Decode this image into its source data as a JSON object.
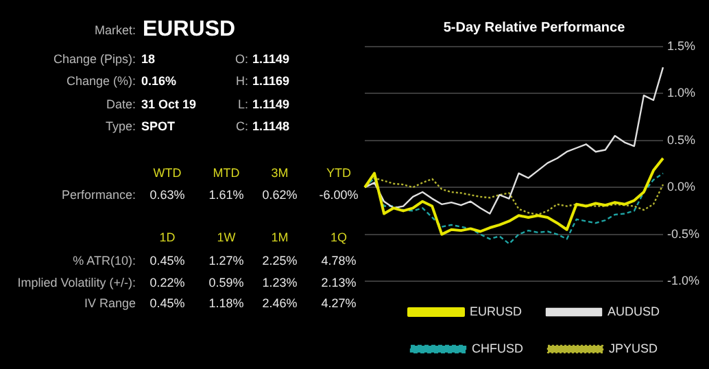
{
  "chart_data": [
    {
      "type": "other",
      "annotations": [
        "Market:",
        "EURUSD",
        "Change (Pips):",
        "18",
        "O:",
        "1.1149",
        "Change (%):",
        "0.16%",
        "H:",
        "1.1169",
        "Date:",
        "31 Oct 19",
        "L:",
        "1.1149",
        "Type:",
        "SPOT",
        "C:",
        "1.1148",
        "WTD",
        "MTD",
        "3M",
        "YTD",
        "Performance:",
        "0.63%",
        "1.61%",
        "0.62%",
        "-6.00%",
        "1D",
        "1W",
        "1M",
        "1Q",
        "% ATR(10):",
        "0.45%",
        "1.27%",
        "2.25%",
        "4.78%",
        "Implied Volatility (+/-):",
        "0.22%",
        "0.59%",
        "1.23%",
        "2.13%",
        "IV Range",
        "0.45%",
        "1.18%",
        "2.46%",
        "4.27%"
      ]
    },
    {
      "type": "line",
      "title": "5-Day Relative Performance",
      "categories": [
        null,
        null,
        null,
        null,
        null,
        null,
        null,
        null,
        null,
        null,
        null,
        null,
        null,
        null,
        null,
        null,
        null,
        null,
        null,
        null,
        null,
        null,
        null,
        null,
        null,
        null,
        null,
        null,
        null,
        null,
        null,
        null
      ],
      "series": [
        {
          "name": "EURUSD",
          "color": "#e6e600",
          "line_style": "solid",
          "values": [
            0.0,
            0.15,
            -0.28,
            -0.22,
            -0.25,
            -0.22,
            -0.15,
            -0.2,
            -0.5,
            -0.45,
            -0.46,
            -0.44,
            -0.47,
            -0.43,
            -0.4,
            -0.36,
            -0.3,
            -0.32,
            -0.3,
            -0.32,
            -0.38,
            -0.45,
            -0.18,
            -0.2,
            -0.17,
            -0.19,
            -0.16,
            -0.18,
            -0.14,
            -0.05,
            0.18,
            0.31
          ]
        },
        {
          "name": "AUDUSD",
          "color": "#e0e0e0",
          "line_style": "solid",
          "values": [
            0.0,
            0.05,
            -0.15,
            -0.22,
            -0.2,
            -0.1,
            -0.05,
            -0.12,
            -0.18,
            -0.16,
            -0.19,
            -0.15,
            -0.22,
            -0.28,
            -0.08,
            -0.12,
            0.15,
            0.1,
            0.18,
            0.26,
            0.31,
            0.38,
            0.42,
            0.46,
            0.38,
            0.4,
            0.55,
            0.48,
            0.44,
            0.98,
            0.93,
            1.28
          ]
        },
        {
          "name": "CHFUSD",
          "color": "#1fa5a5",
          "line_style": "dashed",
          "values": [
            0.0,
            0.1,
            -0.2,
            -0.2,
            -0.24,
            -0.25,
            -0.22,
            -0.32,
            -0.42,
            -0.4,
            -0.42,
            -0.44,
            -0.5,
            -0.55,
            -0.52,
            -0.6,
            -0.5,
            -0.46,
            -0.48,
            -0.47,
            -0.5,
            -0.55,
            -0.34,
            -0.36,
            -0.38,
            -0.35,
            -0.29,
            -0.28,
            -0.25,
            -0.05,
            0.08,
            0.15
          ]
        },
        {
          "name": "JPYUSD",
          "color": "#b5b530",
          "line_style": "dotted",
          "values": [
            0.0,
            0.1,
            0.07,
            0.04,
            0.03,
            0.0,
            0.05,
            0.09,
            -0.02,
            -0.05,
            -0.06,
            -0.08,
            -0.1,
            -0.11,
            -0.08,
            -0.06,
            -0.23,
            -0.27,
            -0.29,
            -0.25,
            -0.18,
            -0.2,
            -0.18,
            -0.19,
            -0.2,
            -0.2,
            -0.18,
            -0.19,
            -0.2,
            -0.24,
            -0.18,
            0.03
          ]
        }
      ],
      "ylim": [
        -1.0,
        1.5
      ],
      "yticks": [
        {
          "value": -1.0,
          "label": "-1.0%"
        },
        {
          "value": -0.5,
          "label": "-0.5%"
        },
        {
          "value": 0.0,
          "label": "0.0%"
        },
        {
          "value": 0.5,
          "label": "0.5%"
        },
        {
          "value": 1.0,
          "label": "1.0%"
        },
        {
          "value": 1.5,
          "label": "1.5%"
        }
      ],
      "grid": "y",
      "legend": "bottom",
      "tick_labels": "y",
      "marker": "none"
    }
  ]
}
